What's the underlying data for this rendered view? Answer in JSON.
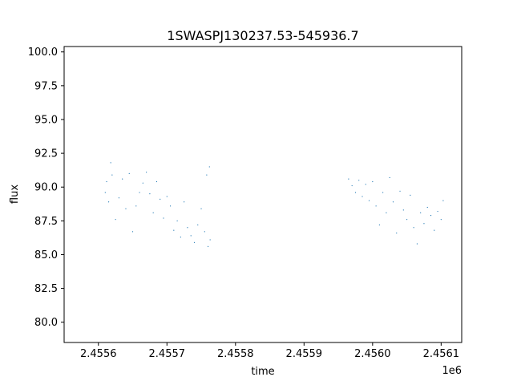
{
  "chart_data": {
    "type": "scatter",
    "title": "1SWASPJ130237.53-545936.7",
    "xlabel": "time",
    "ylabel": "flux",
    "x_offset_label": "1e6",
    "xlim": [
      2.45555,
      2.45613
    ],
    "ylim": [
      78.5,
      100.4
    ],
    "x_ticks": [
      2.4556,
      2.4557,
      2.4558,
      2.4559,
      2.456,
      2.4561
    ],
    "x_tick_labels": [
      "2.4556",
      "2.4557",
      "2.4558",
      "2.4559",
      "2.4560",
      "2.4561"
    ],
    "y_ticks": [
      80.0,
      82.5,
      85.0,
      87.5,
      90.0,
      92.5,
      95.0,
      97.5,
      100.0
    ],
    "y_tick_labels": [
      "80.0",
      "82.5",
      "85.0",
      "87.5",
      "90.0",
      "92.5",
      "95.0",
      "97.5",
      "100.0"
    ],
    "grid": false,
    "series": [
      {
        "color": "#1f77b4",
        "marker_size": 0.6,
        "x": [
          2.45561,
          2.455612,
          2.455615,
          2.455618,
          2.45562,
          2.455625,
          2.45563,
          2.455635,
          2.45564,
          2.455645,
          2.45565,
          2.455655,
          2.45566,
          2.455665,
          2.45567,
          2.455675,
          2.45568,
          2.455685,
          2.45569,
          2.455695,
          2.4557,
          2.455705,
          2.45571,
          2.455715,
          2.45572,
          2.455725,
          2.45573,
          2.455735,
          2.45574,
          2.455745,
          2.45575,
          2.455755,
          2.455758,
          2.45576,
          2.455762,
          2.455763,
          2.455965,
          2.45597,
          2.455975,
          2.45598,
          2.455985,
          2.45599,
          2.455995,
          2.456,
          2.456005,
          2.45601,
          2.456015,
          2.45602,
          2.456025,
          2.45603,
          2.456035,
          2.45604,
          2.456045,
          2.45605,
          2.456055,
          2.45606,
          2.456065,
          2.45607,
          2.456075,
          2.45608,
          2.456085,
          2.45609,
          2.456095,
          2.4561,
          2.456103
        ],
        "y": [
          89.6,
          90.4,
          88.9,
          91.8,
          90.9,
          87.6,
          89.2,
          90.6,
          88.4,
          91.0,
          86.7,
          88.6,
          89.6,
          90.3,
          91.1,
          89.5,
          88.1,
          90.4,
          89.1,
          87.7,
          89.3,
          88.6,
          86.8,
          87.5,
          86.3,
          88.9,
          87.0,
          86.4,
          85.9,
          87.2,
          88.4,
          86.7,
          90.9,
          85.6,
          91.5,
          86.1,
          90.6,
          90.1,
          89.6,
          90.5,
          89.3,
          90.2,
          89.0,
          90.4,
          88.6,
          87.2,
          89.6,
          88.1,
          90.7,
          88.9,
          86.6,
          89.7,
          88.3,
          87.6,
          89.4,
          87.0,
          85.8,
          88.1,
          87.3,
          88.5,
          87.9,
          86.8,
          88.2,
          87.6,
          89.0
        ]
      }
    ]
  }
}
